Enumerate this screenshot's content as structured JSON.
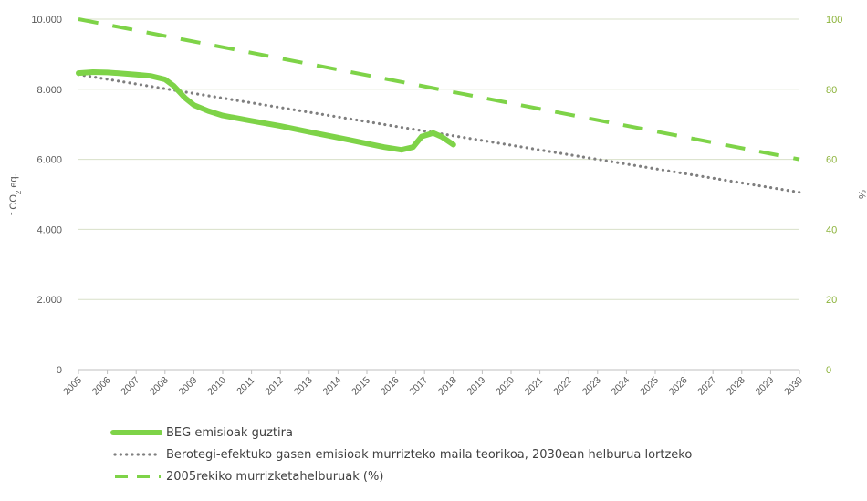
{
  "chart_data": {
    "type": "line",
    "x": [
      "2005",
      "2006",
      "2007",
      "2008",
      "2009",
      "2010",
      "2011",
      "2012",
      "2013",
      "2014",
      "2015",
      "2016",
      "2017",
      "2018",
      "2019",
      "2020",
      "2021",
      "2022",
      "2023",
      "2024",
      "2025",
      "2026",
      "2027",
      "2028",
      "2029",
      "2030"
    ],
    "ylabel": "t CO2 eq.",
    "ylabel_parts": {
      "prefix": "t CO",
      "sub": "2",
      "suffix": " eq."
    },
    "y2label": "%",
    "ylim": [
      0,
      10000
    ],
    "y2lim": [
      0,
      100
    ],
    "yticks": [
      "0",
      "2.000",
      "4.000",
      "6.000",
      "8.000",
      "10.000"
    ],
    "y2ticks": [
      "0",
      "20",
      "40",
      "60",
      "80",
      "100"
    ],
    "grid": true,
    "legend_position": "bottom",
    "series": [
      {
        "name": "BEG emisioak guztira",
        "axis": "left",
        "style": "solid",
        "color": "#7ed348",
        "points": [
          {
            "x": 2005.0,
            "y": 8460
          },
          {
            "x": 2005.5,
            "y": 8490
          },
          {
            "x": 2006.0,
            "y": 8480
          },
          {
            "x": 2006.5,
            "y": 8450
          },
          {
            "x": 2007.0,
            "y": 8420
          },
          {
            "x": 2007.5,
            "y": 8380
          },
          {
            "x": 2008.0,
            "y": 8280
          },
          {
            "x": 2008.3,
            "y": 8100
          },
          {
            "x": 2008.7,
            "y": 7750
          },
          {
            "x": 2009.0,
            "y": 7550
          },
          {
            "x": 2009.5,
            "y": 7380
          },
          {
            "x": 2010.0,
            "y": 7250
          },
          {
            "x": 2011.0,
            "y": 7100
          },
          {
            "x": 2012.0,
            "y": 6950
          },
          {
            "x": 2013.0,
            "y": 6780
          },
          {
            "x": 2014.0,
            "y": 6620
          },
          {
            "x": 2015.0,
            "y": 6450
          },
          {
            "x": 2015.6,
            "y": 6350
          },
          {
            "x": 2016.2,
            "y": 6270
          },
          {
            "x": 2016.6,
            "y": 6350
          },
          {
            "x": 2016.9,
            "y": 6650
          },
          {
            "x": 2017.3,
            "y": 6750
          },
          {
            "x": 2017.6,
            "y": 6640
          },
          {
            "x": 2018.0,
            "y": 6420
          }
        ]
      },
      {
        "name": "Berotegi-efektuko gasen emisioak murrizteko maila teorikoa, 2030ean helburua lortzeko",
        "axis": "left",
        "style": "dotted",
        "color": "#7f7f7f",
        "points": [
          {
            "x": 2005,
            "y": 8420
          },
          {
            "x": 2030,
            "y": 5060
          }
        ]
      },
      {
        "name": "2005rekiko murrizketahelburuak (%)",
        "axis": "right",
        "style": "dashed",
        "color": "#7ed348",
        "points": [
          {
            "x": 2005,
            "y": 100
          },
          {
            "x": 2030,
            "y": 60
          }
        ]
      }
    ]
  }
}
